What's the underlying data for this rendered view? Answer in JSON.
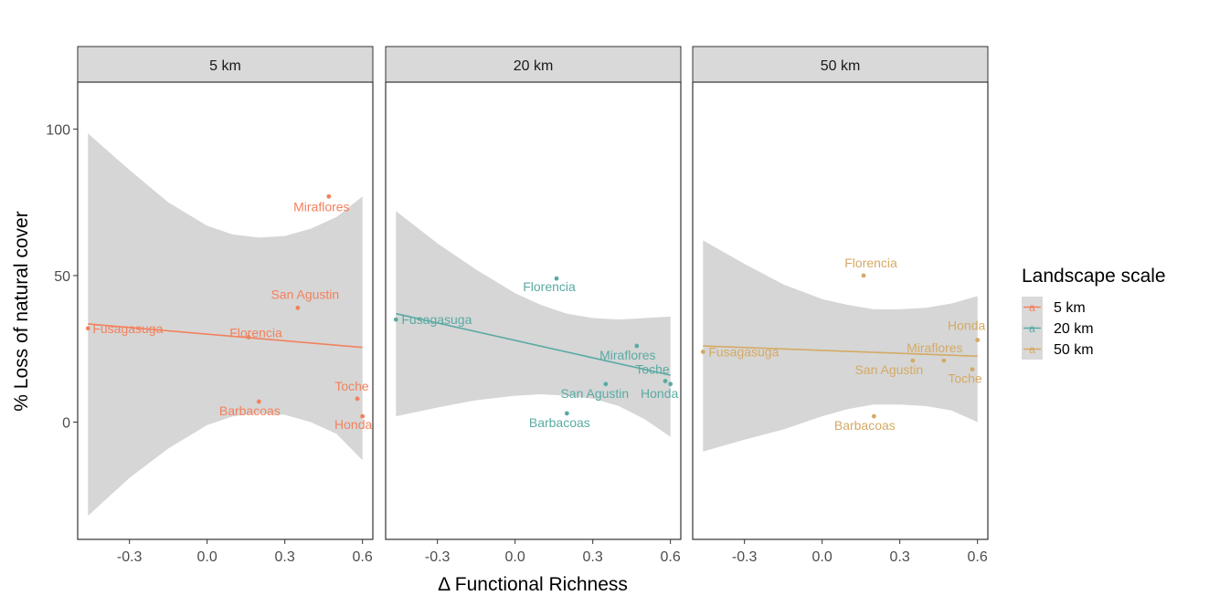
{
  "chart_data": {
    "type": "scatter",
    "facet_variable": "Landscape scale",
    "xlabel": "Δ Functional Richness",
    "ylabel": "% Loss of natural cover",
    "xlim": [
      -0.5,
      0.64
    ],
    "ylim": [
      -40,
      116
    ],
    "x_ticks": [
      -0.3,
      0.0,
      0.3,
      0.6
    ],
    "x_tick_labels": [
      "-0.3",
      "0.0",
      "0.3",
      "0.6"
    ],
    "y_ticks": [
      0,
      50,
      100
    ],
    "y_tick_labels": [
      "0",
      "50",
      "100"
    ],
    "grid": false,
    "legend": {
      "title": "Landscape scale",
      "position": "right",
      "key_glyph": "a",
      "items": [
        {
          "name": "5 km",
          "color": "#f2815d"
        },
        {
          "name": "20 km",
          "color": "#5aaaa3"
        },
        {
          "name": "50 km",
          "color": "#d4aa65"
        }
      ]
    },
    "facets": [
      {
        "label": "5 km",
        "color": "#f2815d",
        "points": [
          {
            "site": "Miraflores",
            "x": 0.47,
            "y": 77
          },
          {
            "site": "San Agustin",
            "x": 0.35,
            "y": 39
          },
          {
            "site": "Florencia",
            "x": 0.16,
            "y": 29
          },
          {
            "site": "Fusagasuga",
            "x": -0.46,
            "y": 32
          },
          {
            "site": "Barbacoas",
            "x": 0.2,
            "y": 7
          },
          {
            "site": "Toche",
            "x": 0.58,
            "y": 8
          },
          {
            "site": "Honda",
            "x": 0.6,
            "y": 2
          }
        ],
        "trend": {
          "x": [
            -0.46,
            0.6
          ],
          "y": [
            33.5,
            25.5
          ]
        },
        "ci_band": {
          "x": [
            -0.46,
            -0.3,
            -0.15,
            0.0,
            0.1,
            0.2,
            0.3,
            0.4,
            0.5,
            0.6
          ],
          "upper": [
            98.5,
            86,
            75,
            67,
            64,
            63,
            63.5,
            66,
            70,
            77
          ],
          "lower": [
            -32,
            -19,
            -9,
            -1,
            2,
            3,
            2.5,
            0,
            -4,
            -13
          ]
        }
      },
      {
        "label": "20 km",
        "color": "#5aaaa3",
        "points": [
          {
            "site": "Florencia",
            "x": 0.16,
            "y": 49
          },
          {
            "site": "Fusagasuga",
            "x": -0.46,
            "y": 35
          },
          {
            "site": "Miraflores",
            "x": 0.47,
            "y": 26
          },
          {
            "site": "Toche",
            "x": 0.58,
            "y": 14
          },
          {
            "site": "Honda",
            "x": 0.6,
            "y": 13
          },
          {
            "site": "San Agustin",
            "x": 0.35,
            "y": 13
          },
          {
            "site": "Barbacoas",
            "x": 0.2,
            "y": 3
          }
        ],
        "trend": {
          "x": [
            -0.46,
            0.6
          ],
          "y": [
            37,
            16
          ]
        },
        "ci_band": {
          "x": [
            -0.46,
            -0.3,
            -0.15,
            0.0,
            0.1,
            0.2,
            0.3,
            0.4,
            0.5,
            0.6
          ],
          "upper": [
            72,
            61,
            52,
            44,
            40,
            37,
            35.5,
            35,
            35.5,
            36
          ],
          "lower": [
            2,
            5,
            7.5,
            9,
            9.5,
            9,
            8,
            5.5,
            1,
            -5
          ]
        }
      },
      {
        "label": "50 km",
        "color": "#d4aa65",
        "points": [
          {
            "site": "Florencia",
            "x": 0.16,
            "y": 50
          },
          {
            "site": "Honda",
            "x": 0.6,
            "y": 28
          },
          {
            "site": "Fusagasuga",
            "x": -0.46,
            "y": 24
          },
          {
            "site": "Miraflores",
            "x": 0.47,
            "y": 21
          },
          {
            "site": "San Agustin",
            "x": 0.35,
            "y": 21
          },
          {
            "site": "Toche",
            "x": 0.58,
            "y": 18
          },
          {
            "site": "Barbacoas",
            "x": 0.2,
            "y": 2
          }
        ],
        "trend": {
          "x": [
            -0.46,
            0.6
          ],
          "y": [
            26,
            22.5
          ]
        },
        "ci_band": {
          "x": [
            -0.46,
            -0.3,
            -0.15,
            0.0,
            0.1,
            0.2,
            0.3,
            0.4,
            0.5,
            0.6
          ],
          "upper": [
            62,
            54,
            47,
            42,
            40,
            38.5,
            38.5,
            39,
            40.5,
            43
          ],
          "lower": [
            -10,
            -6,
            -2.5,
            2,
            4.5,
            6,
            6,
            5.5,
            4,
            0
          ]
        }
      }
    ]
  }
}
